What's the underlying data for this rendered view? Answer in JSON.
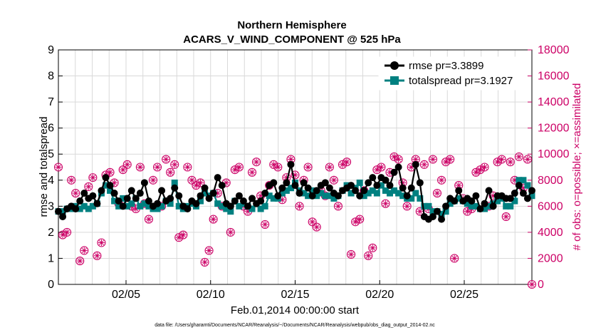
{
  "chart_data": {
    "type": "line",
    "title": "Northern Hemisphere",
    "subtitle": "ACARS_V_WIND_COMPONENT @ 525 hPa",
    "xlabel": "Feb.01,2014 00:00:00 start",
    "ylabel_left": "rmse and totalspread",
    "ylabel_right": "# of obs: o=possible; ×=assimilated",
    "footnote": "data file: /Users/gharamti/Documents/NCAR/Reanalysis/~/Documents/NCAR/Reanalysis/webpub/obs_diag_output_2014-02.nc",
    "x_ticks": [
      {
        "label": "02/05",
        "day": 5
      },
      {
        "label": "02/10",
        "day": 10
      },
      {
        "label": "02/15",
        "day": 15
      },
      {
        "label": "02/20",
        "day": 20
      },
      {
        "label": "02/25",
        "day": 25
      }
    ],
    "xlim": [
      1,
      29
    ],
    "ylim_left": [
      0,
      9
    ],
    "ylim_right": [
      0,
      18000
    ],
    "yticks_left": [
      "0",
      "1",
      "2",
      "3",
      "4",
      "5",
      "6",
      "7",
      "8",
      "9"
    ],
    "yticks_right": [
      "0",
      "2000",
      "4000",
      "6000",
      "8000",
      "10000",
      "12000",
      "14000",
      "16000",
      "18000"
    ],
    "grid": true,
    "legend_position": "top-right",
    "colors": {
      "rmse": "#000000",
      "totalspread": "#008080",
      "obs": "#cc0066"
    },
    "series": [
      {
        "name": "rmse pr=3.3899",
        "values": [
          2.8,
          2.6,
          2.9,
          3.0,
          2.9,
          3.2,
          3.5,
          3.3,
          3.4,
          3.1,
          3.6,
          4.1,
          3.8,
          3.5,
          3.2,
          3.0,
          3.3,
          3.6,
          3.3,
          3.5,
          3.9,
          3.2,
          3.0,
          3.1,
          3.6,
          3.2,
          3.3,
          3.7,
          3.4,
          3.0,
          2.9,
          3.2,
          3.1,
          3.4,
          3.7,
          3.3,
          3.5,
          4.1,
          3.8,
          3.1,
          3.0,
          3.2,
          3.4,
          3.2,
          3.0,
          3.3,
          3.1,
          3.2,
          3.5,
          3.8,
          3.9,
          3.4,
          3.7,
          3.9,
          4.6,
          3.8,
          3.5,
          3.9,
          3.7,
          3.4,
          3.6,
          3.8,
          3.9,
          3.7,
          3.5,
          3.4,
          3.6,
          3.7,
          3.8,
          3.6,
          3.4,
          3.6,
          3.9,
          4.1,
          3.8,
          4.1,
          4.0,
          3.8,
          4.3,
          4.5,
          3.7,
          3.4,
          3.7,
          4.6,
          3.9,
          2.6,
          2.5,
          2.6,
          2.8,
          2.5,
          3.0,
          3.3,
          3.2,
          3.6,
          3.2,
          3.3,
          3.2,
          3.4,
          2.9,
          3.1,
          3.6,
          3.0,
          3.4,
          3.4,
          3.3,
          3.3,
          3.5,
          3.8,
          3.5,
          3.3,
          3.6
        ]
      },
      {
        "name": "totalspread pr=3.1927",
        "values": [
          2.8,
          2.8,
          2.9,
          2.9,
          3.0,
          2.9,
          3.0,
          2.9,
          3.0,
          3.1,
          3.5,
          3.8,
          3.6,
          3.2,
          3.0,
          3.3,
          3.0,
          3.1,
          3.3,
          3.0,
          3.1,
          3.0,
          2.9,
          2.9,
          3.0,
          3.2,
          3.1,
          3.9,
          3.0,
          2.9,
          3.0,
          3.1,
          3.0,
          3.2,
          3.5,
          3.4,
          3.5,
          3.1,
          3.0,
          2.9,
          2.8,
          3.2,
          3.0,
          3.1,
          3.0,
          2.9,
          3.1,
          2.9,
          3.0,
          3.4,
          3.3,
          3.3,
          3.5,
          3.6,
          3.7,
          3.9,
          3.6,
          3.5,
          3.4,
          3.6,
          3.4,
          3.5,
          3.4,
          3.4,
          3.3,
          3.4,
          3.6,
          3.8,
          3.5,
          3.7,
          3.9,
          3.4,
          3.5,
          3.6,
          3.5,
          3.8,
          3.6,
          3.5,
          3.6,
          3.5,
          3.4,
          3.3,
          3.3,
          3.5,
          3.3,
          3.0,
          3.0,
          2.8,
          2.8,
          2.7,
          2.8,
          3.1,
          3.2,
          3.3,
          3.2,
          3.1,
          3.0,
          3.0,
          2.9,
          2.9,
          3.0,
          3.1,
          3.2,
          3.3,
          3.0,
          3.0,
          3.2,
          4.0,
          4.0,
          3.8,
          3.4
        ]
      },
      {
        "name": "obs_possible",
        "values": [
          9000,
          3800,
          4000,
          8000,
          7000,
          1800,
          2600,
          7500,
          8200,
          2200,
          3200,
          8400,
          8600,
          7800,
          6200,
          8800,
          9200,
          6000,
          5800,
          9000,
          6200,
          5000,
          8000,
          9000,
          6000,
          9600,
          8600,
          9200,
          3600,
          3800,
          9000,
          8000,
          7600,
          7800,
          1700,
          2600,
          5000,
          7000,
          6000,
          7800,
          4000,
          8800,
          9000,
          6000,
          5600,
          8600,
          9400,
          6800,
          4600,
          7600,
          9200,
          9000,
          6500,
          8200,
          9600,
          8400,
          6000,
          8000,
          9000,
          4800,
          4400,
          7200,
          6800,
          9000,
          8000,
          6000,
          9200,
          9400,
          2300,
          4800,
          5000,
          7200,
          2200,
          2800,
          8800,
          9000,
          6200,
          8600,
          9800,
          9600,
          7800,
          6000,
          9000,
          9600,
          5600,
          9200,
          5800,
          9600,
          7000,
          8000,
          9400,
          9600,
          2000,
          7600,
          6600,
          5600,
          5800,
          8600,
          8800,
          9000,
          6000,
          6800,
          9400,
          9600,
          5200,
          9400,
          8000,
          9800,
          7400,
          9600,
          0
        ]
      },
      {
        "name": "obs_assimilated",
        "values": [
          9000,
          3800,
          4000,
          8000,
          7000,
          1800,
          2600,
          7500,
          8200,
          2200,
          3200,
          8400,
          8600,
          7800,
          6200,
          8800,
          9200,
          6000,
          5800,
          9000,
          6200,
          5000,
          8000,
          9000,
          6000,
          9600,
          8600,
          9200,
          3600,
          3800,
          9000,
          8000,
          7600,
          7800,
          1700,
          2600,
          5000,
          7000,
          6000,
          7800,
          4000,
          8800,
          9000,
          6000,
          5600,
          8600,
          9400,
          6800,
          4600,
          7600,
          9200,
          9000,
          6500,
          8200,
          9600,
          8400,
          6000,
          8000,
          9000,
          4800,
          4400,
          7200,
          6800,
          9000,
          8000,
          6000,
          9200,
          9400,
          2300,
          4800,
          5000,
          7200,
          2200,
          2800,
          8800,
          9000,
          6200,
          8600,
          9800,
          9600,
          7800,
          6000,
          9000,
          9600,
          5600,
          9200,
          5800,
          9600,
          7000,
          8000,
          9400,
          9600,
          2000,
          7600,
          6600,
          5600,
          5800,
          8600,
          8800,
          9000,
          6000,
          6800,
          9400,
          9600,
          5200,
          9400,
          8000,
          9800,
          7400,
          9600,
          0
        ]
      }
    ]
  }
}
